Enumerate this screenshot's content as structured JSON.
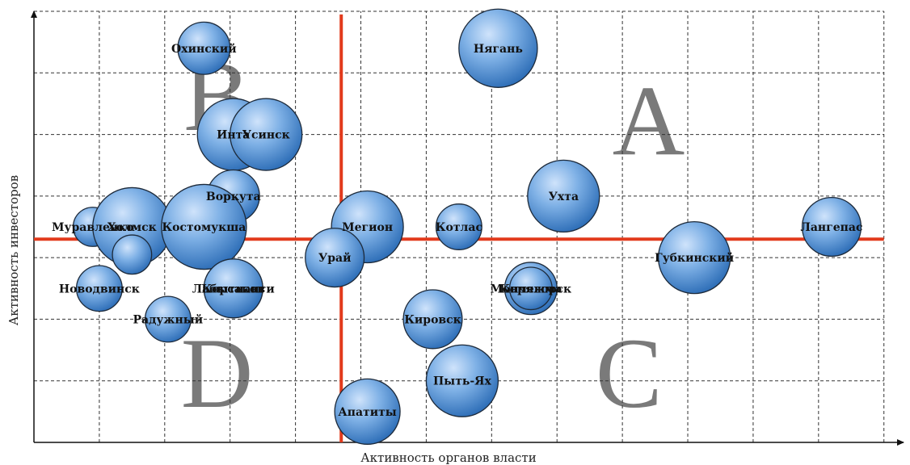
{
  "chart_data": {
    "type": "scatter",
    "xlabel": "Активность органов власти",
    "ylabel": "Активность инвесторов",
    "xlim": [
      0,
      13.3
    ],
    "ylim": [
      0,
      7
    ],
    "grid": true,
    "divider_x": 4.7,
    "divider_y": 3.3,
    "bubble_color": "#6ea4de",
    "divider_color": "#e23a1c",
    "quadrants": [
      {
        "letter": "A",
        "x": 9.4,
        "y": 5.2
      },
      {
        "letter": "B",
        "x": 2.8,
        "y": 5.6
      },
      {
        "letter": "C",
        "x": 9.1,
        "y": 1.1
      },
      {
        "letter": "D",
        "x": 2.8,
        "y": 1.1
      }
    ],
    "points": [
      {
        "label": "Охинский",
        "x": 2.6,
        "y": 6.4,
        "size": 0.8
      },
      {
        "label": "Нягань",
        "x": 7.1,
        "y": 6.4,
        "size": 1.2
      },
      {
        "label": "Инта",
        "x": 3.05,
        "y": 5.0,
        "size": 1.1
      },
      {
        "label": "Усинск",
        "x": 3.55,
        "y": 5.0,
        "size": 1.1
      },
      {
        "label": "Воркута",
        "x": 3.05,
        "y": 4.0,
        "size": 0.8
      },
      {
        "label": "Муравленко",
        "x": 0.9,
        "y": 3.5,
        "size": 0.6
      },
      {
        "label": "Холмск",
        "x": 1.5,
        "y": 3.5,
        "size": 1.2
      },
      {
        "label": "",
        "x": 1.5,
        "y": 3.05,
        "size": 0.6
      },
      {
        "label": "Костомукша",
        "x": 2.6,
        "y": 3.5,
        "size": 1.3
      },
      {
        "label": "Мегион",
        "x": 5.1,
        "y": 3.5,
        "size": 1.1
      },
      {
        "label": "Котлас",
        "x": 6.5,
        "y": 3.5,
        "size": 0.7
      },
      {
        "label": "Ухта",
        "x": 8.1,
        "y": 4.0,
        "size": 1.1
      },
      {
        "label": "Лангепас",
        "x": 12.2,
        "y": 3.5,
        "size": 0.9
      },
      {
        "label": "Урай",
        "x": 4.6,
        "y": 3.0,
        "size": 0.9
      },
      {
        "label": "Губкинский",
        "x": 10.1,
        "y": 3.0,
        "size": 1.1
      },
      {
        "label": "Мончегорск",
        "x": 7.6,
        "y": 2.5,
        "size": 0.8
      },
      {
        "label": "Коряжма",
        "x": 7.6,
        "y": 2.5,
        "size": 0.65
      },
      {
        "label": "Лабытнанги",
        "x": 3.05,
        "y": 2.5,
        "size": 0.9
      },
      {
        "label": "Новодвинск",
        "x": 1.0,
        "y": 2.5,
        "size": 0.7
      },
      {
        "label": "Радужный",
        "x": 2.05,
        "y": 2.0,
        "size": 0.7
      },
      {
        "label": "Корсаков",
        "x": 3.05,
        "y": 2.5,
        "size": 0.9
      },
      {
        "label": "Кировск",
        "x": 6.1,
        "y": 2.0,
        "size": 0.9
      },
      {
        "label": "Пыть-Ях",
        "x": 6.55,
        "y": 1.0,
        "size": 1.1
      },
      {
        "label": "Апатиты",
        "x": 5.1,
        "y": 0.5,
        "size": 1.0
      }
    ]
  }
}
